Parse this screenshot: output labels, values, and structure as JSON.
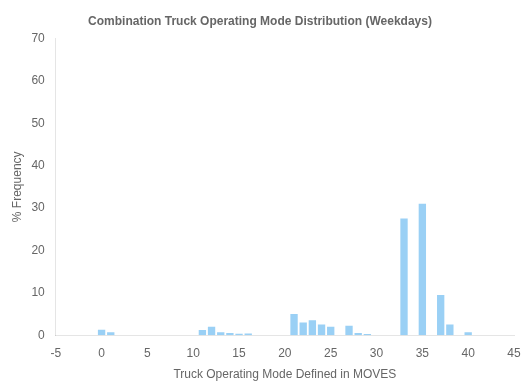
{
  "chart_data": {
    "type": "bar",
    "title": "Combination Truck Operating Mode Distribution (Weekdays)",
    "xlabel": "Truck Operating Mode Defined in MOVES",
    "ylabel": "% Frequency",
    "x": [
      0,
      1,
      11,
      12,
      13,
      14,
      15,
      16,
      21,
      22,
      23,
      24,
      25,
      27,
      28,
      29,
      33,
      35,
      37,
      38,
      40
    ],
    "values": [
      1.3,
      0.7,
      1.2,
      2.0,
      0.7,
      0.5,
      0.35,
      0.4,
      5.0,
      3.0,
      3.5,
      2.5,
      2.0,
      2.2,
      0.5,
      0.3,
      27.5,
      31.0,
      9.5,
      2.5,
      0.7
    ],
    "xlim": [
      -5,
      45
    ],
    "ylim": [
      0,
      70
    ],
    "xticks": [
      -5,
      0,
      5,
      10,
      15,
      20,
      25,
      30,
      35,
      40,
      45
    ],
    "yticks": [
      0,
      10,
      20,
      30,
      40,
      50,
      60,
      70
    ],
    "grid": false
  }
}
